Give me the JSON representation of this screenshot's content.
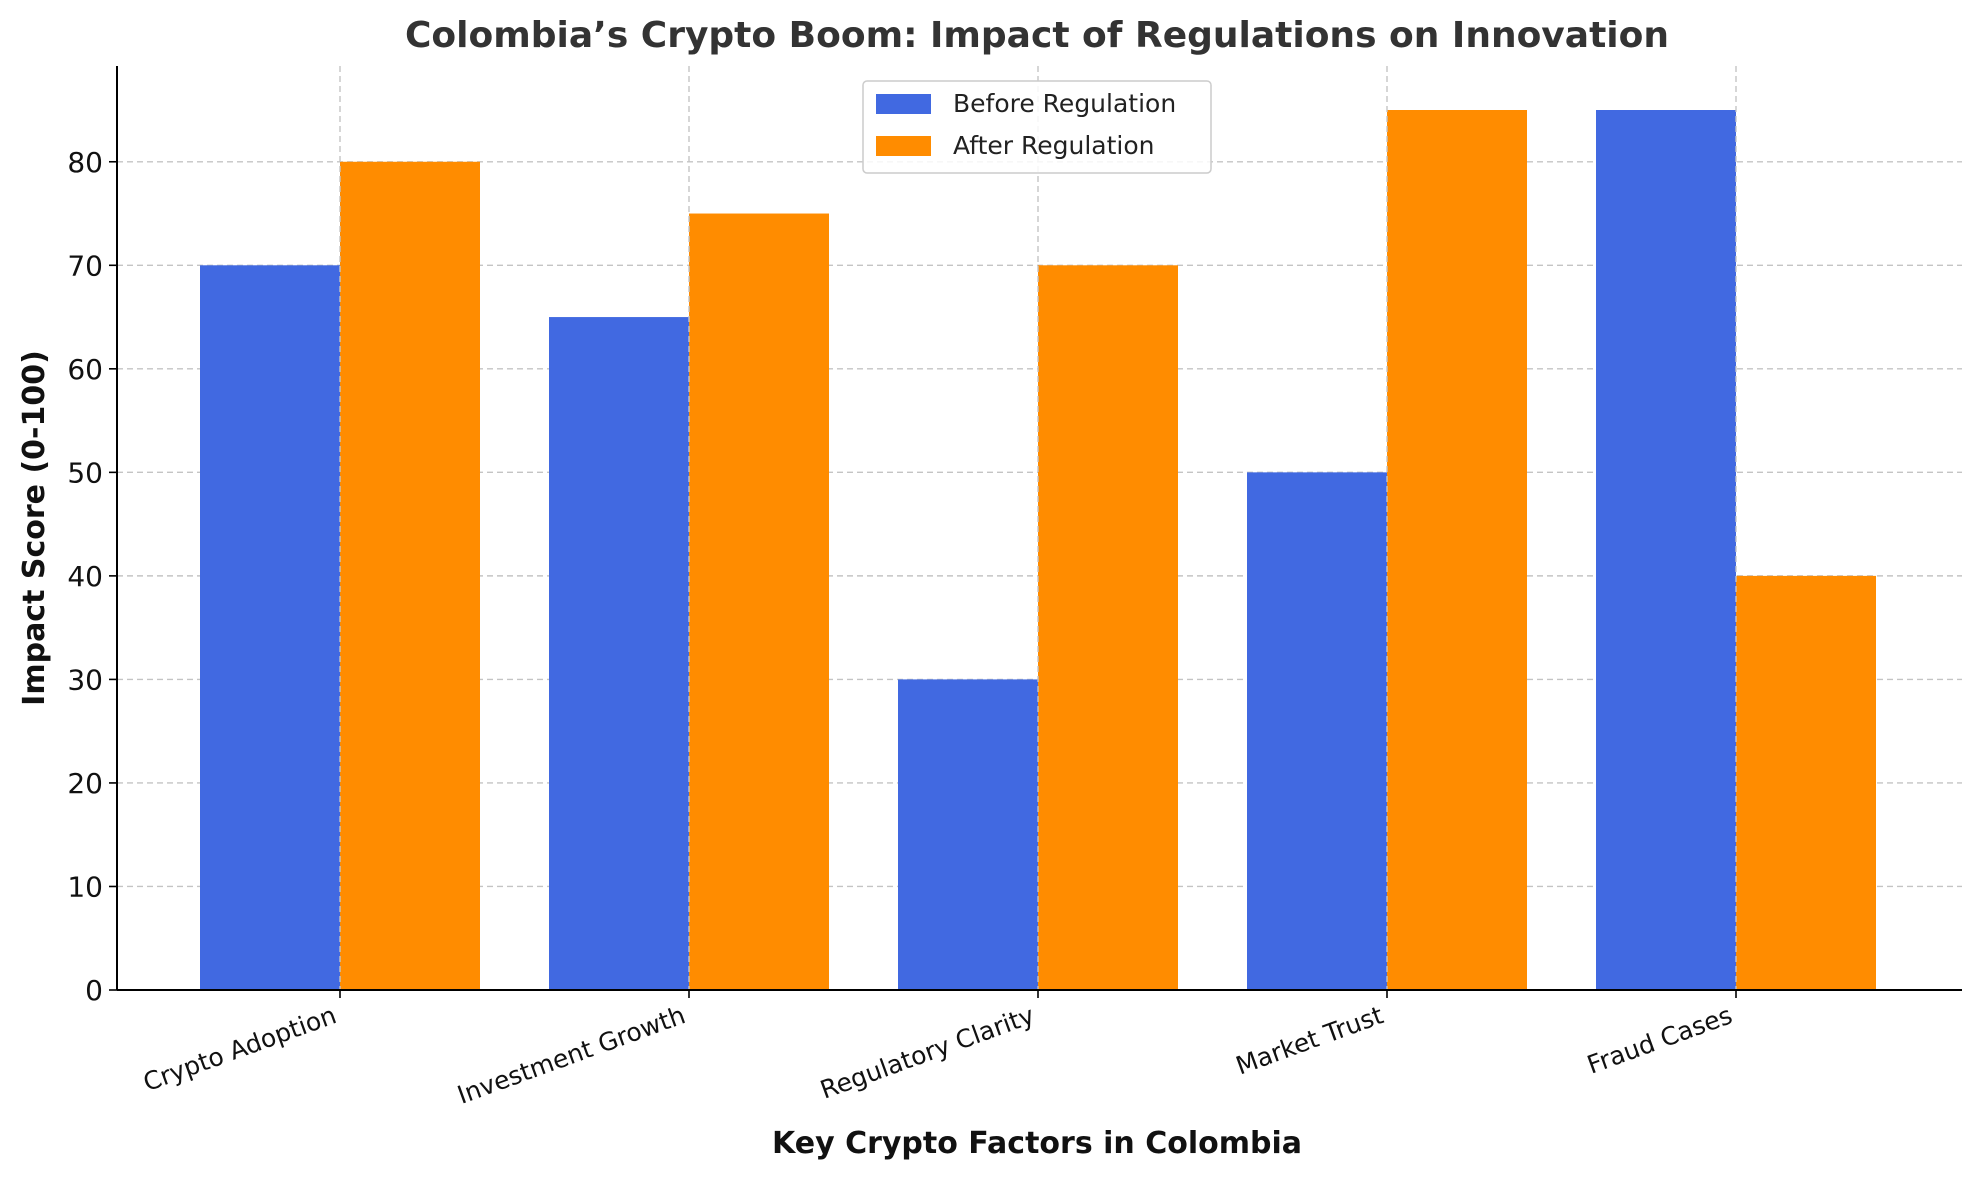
{
  "chart_data": {
    "type": "bar",
    "title": "Colombia’s Crypto Boom: Impact of Regulations on Innovation",
    "xlabel": "Key Crypto Factors in Colombia",
    "ylabel": "Impact Score (0-100)",
    "categories": [
      "Crypto Adoption",
      "Investment Growth",
      "Regulatory Clarity",
      "Market Trust",
      "Fraud Cases"
    ],
    "series": [
      {
        "name": "Before Regulation",
        "color": "#4169e1",
        "values": [
          70,
          65,
          30,
          50,
          85
        ]
      },
      {
        "name": "After Regulation",
        "color": "#ff8c00",
        "values": [
          80,
          75,
          70,
          85,
          40
        ]
      }
    ],
    "ylim": [
      0,
      89.25
    ],
    "yticks": [
      0,
      10,
      20,
      30,
      40,
      50,
      60,
      70,
      80
    ],
    "grid": true,
    "legend_position": "top-center"
  }
}
